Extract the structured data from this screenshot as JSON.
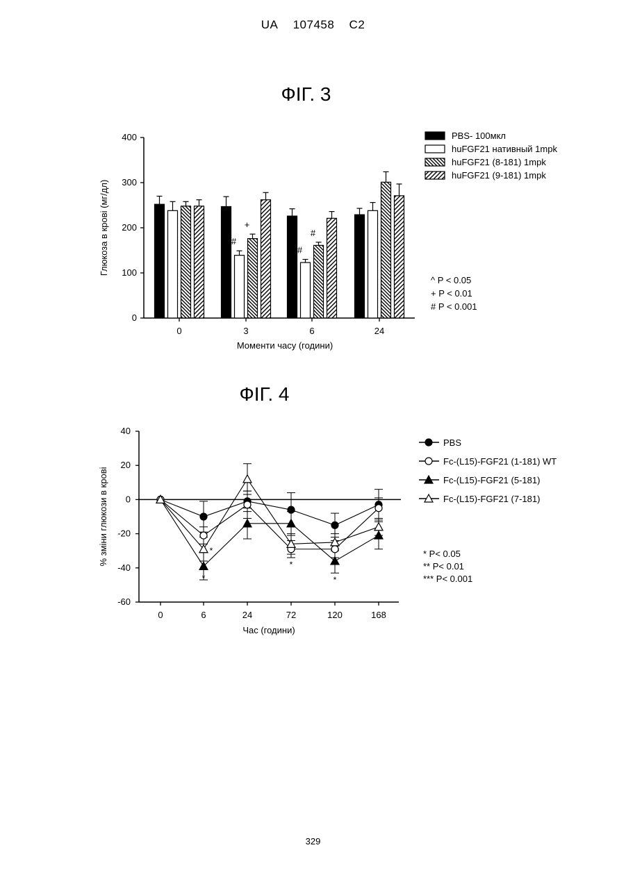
{
  "header": {
    "country": "UA",
    "patent_number": "107458",
    "kind_code": "C2"
  },
  "page_number": "329",
  "figures": [
    {
      "title": "ФІГ. 3"
    },
    {
      "title": "ФІГ. 4"
    }
  ],
  "chart_data": [
    {
      "type": "bar",
      "xlabel": "Моменти часу (години)",
      "ylabel": "Глюкоза в крові (мг/дл)",
      "ylim": [
        0,
        400
      ],
      "yticks": [
        "0",
        "100",
        "200",
        "300",
        "400"
      ],
      "categories": [
        "0",
        "3",
        "6",
        "24"
      ],
      "legend_position": "top-right",
      "series": [
        {
          "name": "PBS- 100мкл",
          "fill": "solid-black",
          "values": [
            252,
            247,
            226,
            229
          ],
          "errors": [
            18,
            22,
            16,
            14
          ]
        },
        {
          "name": "huFGF21 нативный 1mpk",
          "fill": "white",
          "values": [
            238,
            139,
            123,
            238
          ],
          "errors": [
            20,
            10,
            7,
            18
          ]
        },
        {
          "name": "huFGF21 (8-181) 1mpk",
          "fill": "hatch-back",
          "values": [
            248,
            176,
            161,
            301
          ],
          "errors": [
            10,
            10,
            7,
            23
          ]
        },
        {
          "name": "huFGF21 (9-181) 1mpk",
          "fill": "hatch-forward",
          "values": [
            248,
            262,
            221,
            271
          ],
          "errors": [
            14,
            16,
            15,
            26
          ]
        }
      ],
      "annotations": [
        {
          "text": "#",
          "category": "3",
          "series": 1
        },
        {
          "text": "+",
          "category": "3",
          "series": 2
        },
        {
          "text": "#",
          "category": "6",
          "series": 1
        },
        {
          "text": "#",
          "category": "6",
          "series": 2
        }
      ],
      "significance": [
        "^  P < 0.05",
        "+  P < 0.01",
        "#  P < 0.001"
      ]
    },
    {
      "type": "line",
      "xlabel": "Час (години)",
      "ylabel": "% зміни глюкози в крові",
      "ylim": [
        -60,
        40
      ],
      "yticks": [
        "-60",
        "-40",
        "-20",
        "0",
        "20",
        "40"
      ],
      "categories": [
        "0",
        "6",
        "24",
        "72",
        "120",
        "168"
      ],
      "legend_position": "top-right",
      "series": [
        {
          "name": "PBS",
          "marker": "filled-circle",
          "values": [
            0,
            -10,
            -1,
            -6,
            -15,
            -3
          ],
          "errors": [
            0,
            9,
            6,
            10,
            7,
            9
          ]
        },
        {
          "name": "Fc-(L15)-FGF21 (1-181) WT",
          "marker": "open-circle",
          "values": [
            0,
            -21,
            -3,
            -29,
            -29,
            -5
          ],
          "errors": [
            0,
            5,
            8,
            5,
            5,
            6
          ]
        },
        {
          "name": "Fc-(L15)-FGF21 (5-181)",
          "marker": "filled-triangle",
          "values": [
            0,
            -39,
            -14,
            -14,
            -36,
            -21
          ],
          "errors": [
            0,
            8,
            9,
            7,
            7,
            8
          ]
        },
        {
          "name": "Fc-(L15)-FGF21 (7-181)",
          "marker": "open-triangle",
          "values": [
            0,
            -29,
            12,
            -26,
            -25,
            -16
          ],
          "errors": [
            0,
            7,
            9,
            6,
            5,
            5
          ]
        }
      ],
      "annotations": [
        {
          "text": "*",
          "category": "6",
          "value": -30
        },
        {
          "text": "*",
          "category": "6",
          "value": -46
        },
        {
          "text": "*",
          "category": "72",
          "value": -38
        },
        {
          "text": "*",
          "category": "120",
          "value": -47
        }
      ],
      "significance": [
        "* P< 0.05",
        "** P< 0.01",
        "*** P< 0.001"
      ]
    }
  ]
}
